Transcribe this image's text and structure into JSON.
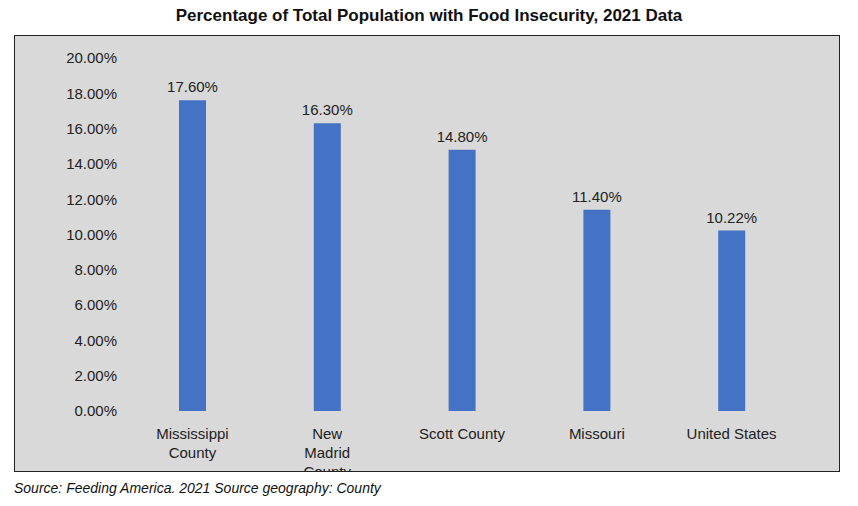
{
  "chart_data": {
    "type": "bar",
    "title": "Percentage of Total Population with Food Insecurity, 2021 Data",
    "categories": [
      "Mississippi County",
      "New Madrid County",
      "Scott County",
      "Missouri",
      "United States"
    ],
    "values": [
      17.6,
      16.3,
      14.8,
      11.4,
      10.22
    ],
    "value_labels": [
      "17.60%",
      "16.30%",
      "14.80%",
      "11.40%",
      "10.22%"
    ],
    "color": "#4472c4",
    "ylim": [
      0,
      20
    ],
    "yticks": [
      {
        "value": 0,
        "label": "0.00%"
      },
      {
        "value": 2,
        "label": "2.00%"
      },
      {
        "value": 4,
        "label": "4.00%"
      },
      {
        "value": 6,
        "label": "6.00%"
      },
      {
        "value": 8,
        "label": "8.00%"
      },
      {
        "value": 10,
        "label": "10.00%"
      },
      {
        "value": 12,
        "label": "12.00%"
      },
      {
        "value": 14,
        "label": "14.00%"
      },
      {
        "value": 16,
        "label": "16.00%"
      },
      {
        "value": 18,
        "label": "18.00%"
      },
      {
        "value": 20,
        "label": "20.00%"
      }
    ],
    "grid": false,
    "data_labels": true,
    "source": "Source: Feeding America. 2021 Source geography: County"
  }
}
